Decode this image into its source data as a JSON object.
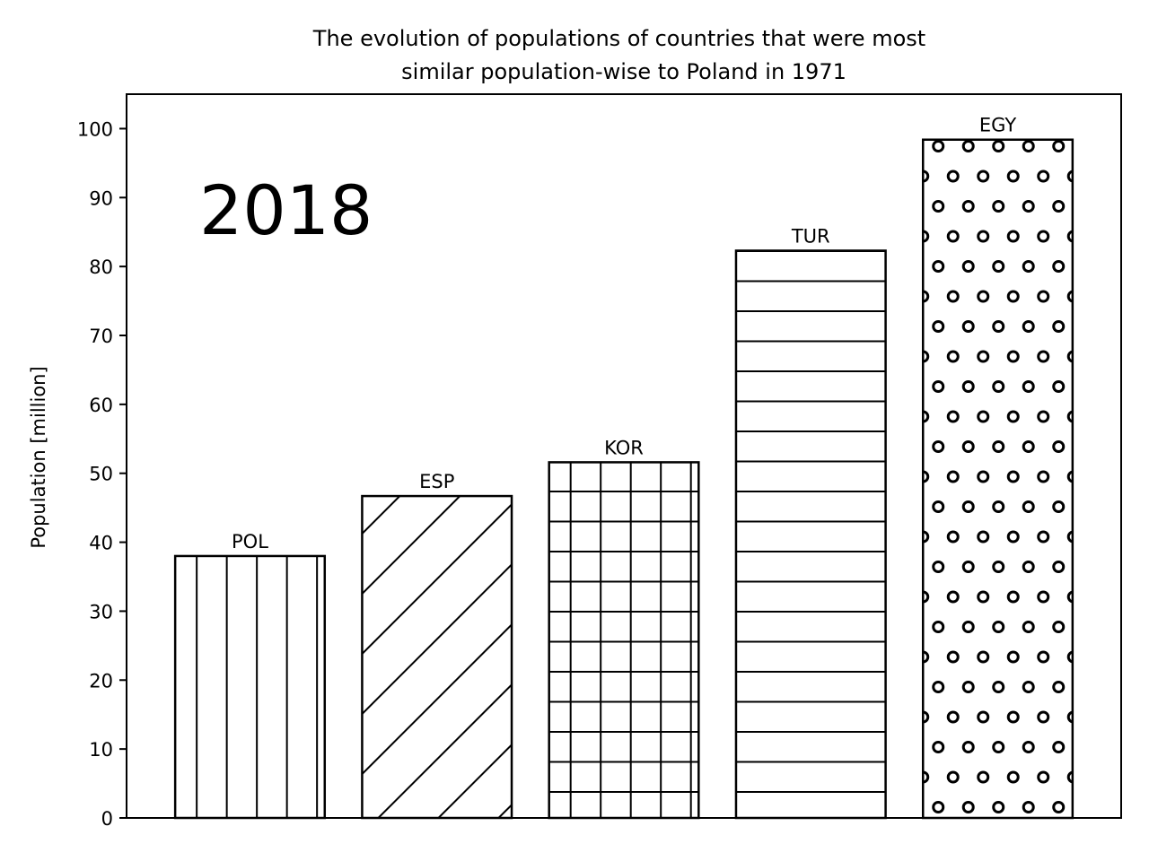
{
  "chart_data": {
    "type": "bar",
    "title": "The evolution of populations of countries that were most similar population-wise to Poland in 1971",
    "title_lines": [
      "The evolution of populations of countries that were most",
      "similar population-wise to Poland in 1971"
    ],
    "year_label": "2018",
    "xlabel": "",
    "ylabel": "Population [million]",
    "ylim": [
      0,
      105
    ],
    "yticks": [
      0,
      10,
      20,
      30,
      40,
      50,
      60,
      70,
      80,
      90,
      100
    ],
    "categories": [
      "POL",
      "ESP",
      "KOR",
      "TUR",
      "EGY"
    ],
    "values": [
      38.0,
      46.7,
      51.6,
      82.3,
      98.4
    ],
    "hatches": [
      "vertical",
      "diagonal",
      "grid",
      "horizontal",
      "circles"
    ],
    "grid": false,
    "legend": "none",
    "colors": {
      "bar_fill": "#ffffff",
      "bar_edge": "#000000",
      "hatch": "#000000",
      "background": "#ffffff"
    }
  }
}
